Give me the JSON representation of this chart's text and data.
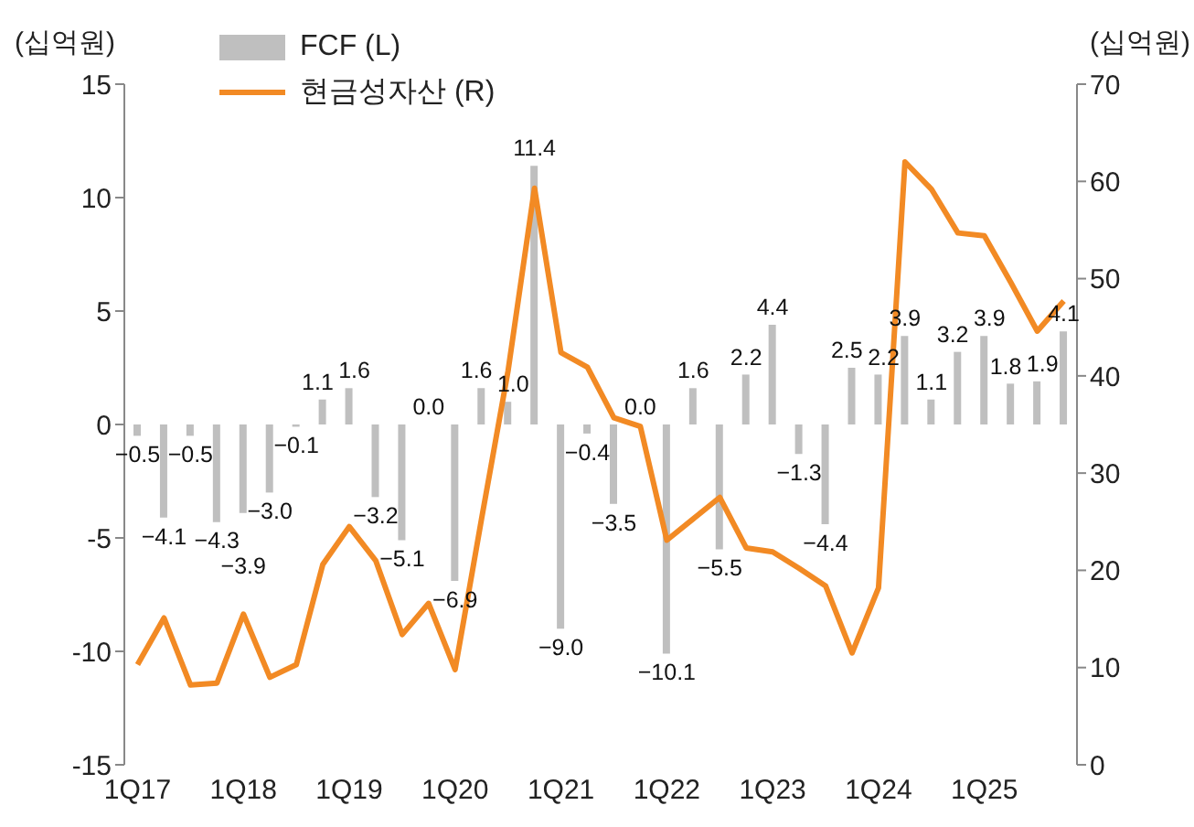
{
  "chart_data": {
    "type": "bar",
    "ylabel": "(십억원)",
    "y2label": "(십억원)",
    "categories": [
      "1Q17",
      null,
      null,
      null,
      "1Q18",
      null,
      null,
      null,
      "1Q19",
      null,
      null,
      null,
      "1Q20",
      null,
      null,
      null,
      "1Q21",
      null,
      null,
      null,
      "1Q22",
      null,
      null,
      null,
      "1Q23",
      null,
      null,
      null,
      "1Q24",
      null,
      null,
      null,
      "1Q25",
      null,
      null,
      null
    ],
    "series": [
      {
        "name": "FCF (L)",
        "color": "#bfbfbf",
        "values": [
          -0.5,
          -4.1,
          -0.5,
          -4.3,
          -3.9,
          -3.0,
          -0.1,
          1.1,
          1.6,
          -3.2,
          -5.1,
          0.0,
          -6.9,
          1.6,
          1.0,
          11.4,
          -9.0,
          -0.4,
          -3.5,
          0.0,
          -10.1,
          1.6,
          -5.5,
          2.2,
          4.4,
          -1.3,
          -4.4,
          2.5,
          2.2,
          3.9,
          1.1,
          3.2,
          3.9,
          1.8,
          1.9,
          4.1
        ],
        "value_labels": [
          "−0.5",
          "−4.1",
          "−0.5",
          "−4.3",
          "−3.9",
          "−3.0",
          "−0.1",
          "1.1",
          "1.6",
          "−3.2",
          "−5.1",
          "0.0",
          "−6.9",
          "1.6",
          "1.0",
          "11.4",
          "−9.0",
          "−0.4",
          "−3.5",
          "0.0",
          "−10.1",
          "1.6",
          "−5.5",
          "2.2",
          "4.4",
          "−1.3",
          "−4.4",
          "2.5",
          "2.2",
          "3.9",
          "1.1",
          "3.2",
          "3.9",
          "1.8",
          "1.9",
          "4.1"
        ]
      },
      {
        "name": "현금성자산 (R)",
        "type": "line",
        "axis": "y2",
        "color": "#f28a24",
        "values": [
          10.3,
          15.1,
          8.2,
          8.4,
          15.5,
          9.0,
          10.3,
          20.6,
          24.5,
          21.0,
          13.4,
          16.6,
          9.8,
          25.3,
          40.5,
          59.3,
          42.4,
          40.9,
          35.7,
          34.8,
          23.1,
          25.3,
          27.5,
          22.3,
          21.9,
          20.2,
          18.4,
          11.5,
          18.2,
          62.0,
          59.2,
          54.7,
          54.4,
          49.6,
          44.6,
          47.7
        ]
      }
    ],
    "ylim": [
      -15,
      15
    ],
    "yticks": [
      -15,
      -10,
      -5,
      0,
      5,
      10,
      15
    ],
    "y2lim": [
      0,
      70
    ],
    "y2ticks": [
      0,
      10,
      20,
      30,
      40,
      50,
      60,
      70
    ],
    "legend": "top left"
  }
}
